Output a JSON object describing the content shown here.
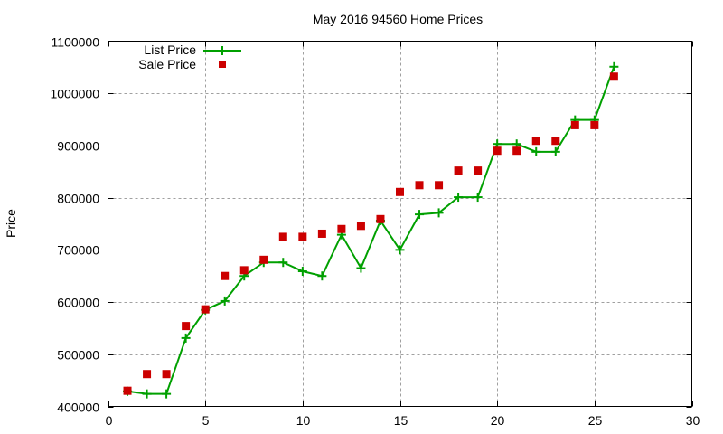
{
  "chart_data": {
    "type": "line",
    "title": "May 2016 94560 Home Prices",
    "xlabel": "",
    "ylabel": "Price",
    "xlim": [
      0,
      30
    ],
    "ylim": [
      400000,
      1100000
    ],
    "xticks": [
      0,
      5,
      10,
      15,
      20,
      25,
      30
    ],
    "yticks": [
      400000,
      500000,
      600000,
      700000,
      800000,
      900000,
      1000000,
      1100000
    ],
    "grid": true,
    "legend_position": "top-left",
    "x": [
      1,
      2,
      3,
      4,
      5,
      6,
      7,
      8,
      9,
      10,
      11,
      12,
      13,
      14,
      15,
      16,
      17,
      18,
      19,
      20,
      21,
      22,
      23,
      24,
      25,
      26
    ],
    "series": [
      {
        "name": "List Price",
        "style": "linespoints",
        "marker": "plus",
        "color": "#00a000",
        "values": [
          429000,
          424000,
          424000,
          531000,
          585000,
          602000,
          650000,
          676000,
          676000,
          659000,
          650000,
          729000,
          665000,
          756000,
          700000,
          768000,
          771000,
          801000,
          801000,
          903000,
          903000,
          888000,
          888000,
          949000,
          949000,
          1051000
        ]
      },
      {
        "name": "Sale Price",
        "style": "points",
        "marker": "square",
        "color": "#cc0000",
        "values": [
          430000,
          462000,
          462000,
          554000,
          586000,
          650000,
          661000,
          681000,
          725000,
          725000,
          731000,
          740000,
          746000,
          759000,
          811000,
          824000,
          824000,
          852000,
          852000,
          890000,
          890000,
          909000,
          909000,
          939000,
          939000,
          1032000
        ]
      }
    ]
  },
  "labels": {
    "title": "May 2016 94560 Home Prices",
    "ylabel": "Price",
    "legend": [
      "List Price",
      "Sale Price"
    ]
  }
}
